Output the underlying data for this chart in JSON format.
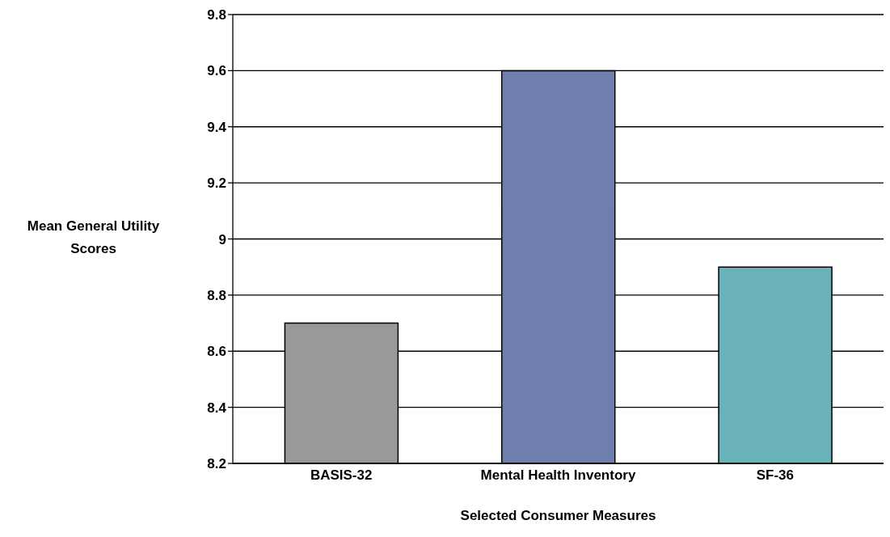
{
  "chart_data": {
    "type": "bar",
    "xlabel": "Selected Consumer Measures",
    "ylabel": "Mean General Utility Scores",
    "categories": [
      "BASIS-32",
      "Mental Health Inventory",
      "SF-36"
    ],
    "values": [
      8.7,
      9.6,
      8.9
    ],
    "colors": [
      "#999999",
      "#6e7fae",
      "#69b3b8"
    ],
    "ylim": [
      8.2,
      9.8
    ],
    "yticks": [
      8.2,
      8.4,
      8.6,
      8.8,
      {
        "value": 9,
        "label": "9"
      },
      9.2,
      9.4,
      9.6,
      9.8
    ],
    "grid": "y"
  }
}
